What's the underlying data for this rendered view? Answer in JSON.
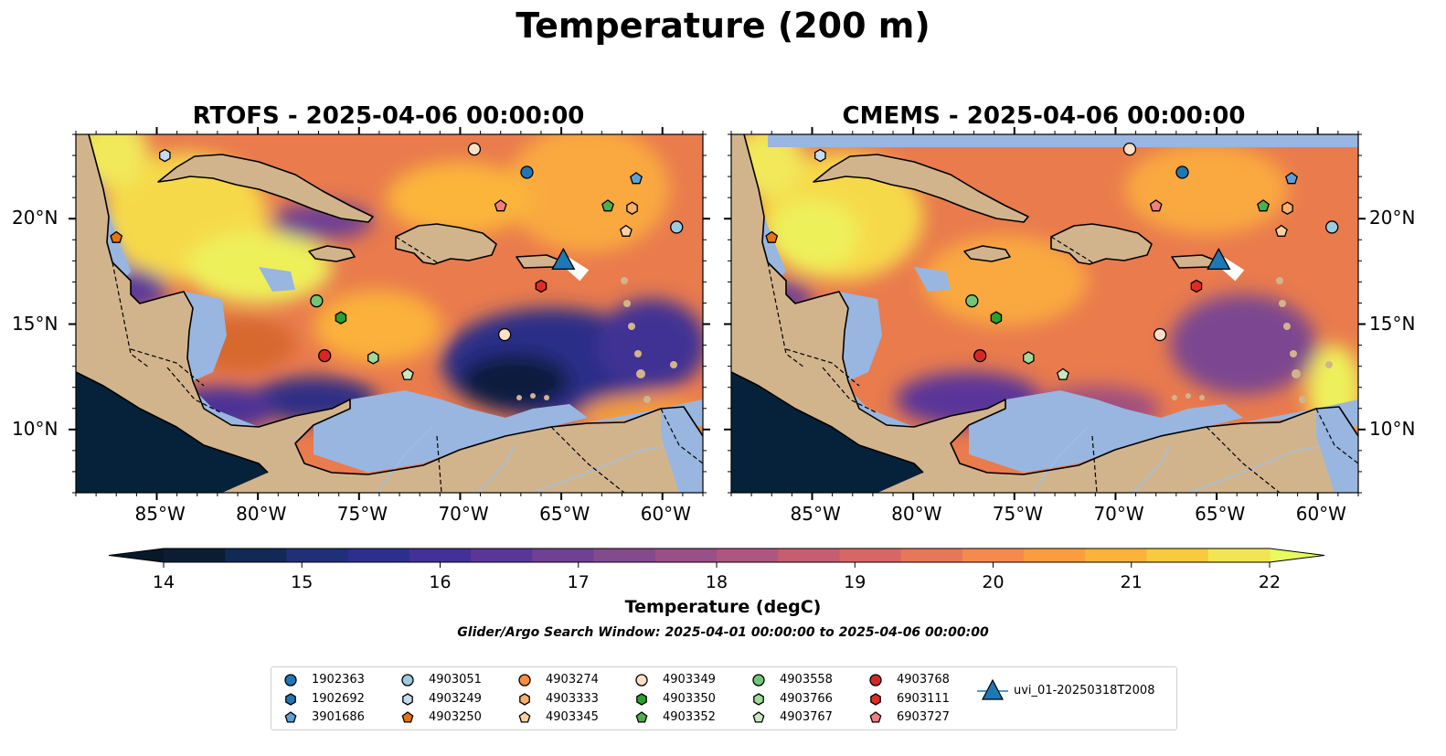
{
  "figure": {
    "suptitle": "Temperature (200 m)",
    "search_window": "Glider/Argo Search Window: 2025-04-01 00:00:00 to 2025-04-06 00:00:00"
  },
  "panels": [
    {
      "title": "RTOFS - 2025-04-06 00:00:00",
      "model": "RTOFS"
    },
    {
      "title": "CMEMS - 2025-04-06 00:00:00",
      "model": "CMEMS"
    }
  ],
  "map_extent": {
    "lon_min": -89,
    "lon_max": -58,
    "lat_min": 7,
    "lat_max": 24
  },
  "axes": {
    "lon_ticks": [
      {
        "value": -85,
        "label": "85°W"
      },
      {
        "value": -80,
        "label": "80°W"
      },
      {
        "value": -75,
        "label": "75°W"
      },
      {
        "value": -70,
        "label": "70°W"
      },
      {
        "value": -65,
        "label": "65°W"
      },
      {
        "value": -60,
        "label": "60°W"
      }
    ],
    "lat_ticks": [
      {
        "value": 20,
        "label": "20°N"
      },
      {
        "value": 15,
        "label": "15°N"
      },
      {
        "value": 10,
        "label": "10°N"
      }
    ]
  },
  "colorbar": {
    "label": "Temperature (degC)",
    "min": 14,
    "max": 22,
    "step": 0.5,
    "extend": "both",
    "ticks": [
      "14",
      "15",
      "16",
      "17",
      "18",
      "19",
      "20",
      "21",
      "22"
    ],
    "colors": [
      "#0a1d33",
      "#112a55",
      "#1f2f78",
      "#2d2f8e",
      "#433098",
      "#5a3699",
      "#6f4093",
      "#844a8e",
      "#994f87",
      "#ad5680",
      "#c45e70",
      "#d66765",
      "#e87659",
      "#f68a4c",
      "#fb9d3f",
      "#fbb33a",
      "#f8cb3f",
      "#f2e452"
    ],
    "under_color": "#07182a",
    "over_color": "#e8fa5e"
  },
  "colors": {
    "land": "#d2b48c",
    "ocean_masked": "#98b6e0",
    "deep": "#06223a"
  },
  "floats": [
    {
      "id": "1902363",
      "marker": "circle",
      "color": "#1f77b4",
      "lon": -66.7,
      "lat": 22.2
    },
    {
      "id": "1902692",
      "marker": "hexagon",
      "color": "#1f77b4",
      "lon": null,
      "lat": null
    },
    {
      "id": "3901686",
      "marker": "pentagon",
      "color": "#5ea0d6",
      "lon": -61.3,
      "lat": 21.9
    },
    {
      "id": "4903051",
      "marker": "circle",
      "color": "#9ecae1",
      "lon": -59.3,
      "lat": 19.6
    },
    {
      "id": "4903249",
      "marker": "hexagon",
      "color": "#c6dbef",
      "lon": -84.6,
      "lat": 23.0
    },
    {
      "id": "4903250",
      "marker": "pentagon",
      "color": "#e6740f",
      "lon": -87.0,
      "lat": 19.1
    },
    {
      "id": "4903274",
      "marker": "circle",
      "color": "#fd8d3c",
      "lon": null,
      "lat": null
    },
    {
      "id": "4903333",
      "marker": "hexagon",
      "color": "#fdae6b",
      "lon": -61.5,
      "lat": 20.5
    },
    {
      "id": "4903345",
      "marker": "pentagon",
      "color": "#fdd0a2",
      "lon": -61.8,
      "lat": 19.4
    },
    {
      "id": "4903349",
      "marker": "circle",
      "color": "#fde0c5",
      "lon": -69.3,
      "lat": 23.3
    },
    {
      "id": "4903350",
      "marker": "hexagon",
      "color": "#2ca02c",
      "lon": -75.9,
      "lat": 15.3
    },
    {
      "id": "4903352",
      "marker": "pentagon",
      "color": "#4daf4a",
      "lon": -62.7,
      "lat": 20.6
    },
    {
      "id": "4903558",
      "marker": "circle",
      "color": "#74c476",
      "lon": -77.1,
      "lat": 16.1
    },
    {
      "id": "4903766",
      "marker": "hexagon",
      "color": "#a1d99b",
      "lon": -74.3,
      "lat": 13.4
    },
    {
      "id": "4903767",
      "marker": "pentagon",
      "color": "#c7e9c0",
      "lon": -72.6,
      "lat": 12.6
    },
    {
      "id": "4903768",
      "marker": "circle",
      "color": "#d62728",
      "lon": -76.7,
      "lat": 13.5
    },
    {
      "id": "6903111",
      "marker": "hexagon",
      "color": "#de2d26",
      "lon": -66.0,
      "lat": 16.8
    },
    {
      "id": "6903727",
      "marker": "pentagon",
      "color": "#f08080",
      "lon": -68.0,
      "lat": 20.6
    }
  ],
  "secondary_points": [
    {
      "id": "4903349",
      "marker": "circle",
      "color": "#fde0c5",
      "lon": -67.8,
      "lat": 14.5
    }
  ],
  "glider": {
    "id": "uvi_01-20250318T2008",
    "marker": "triangle",
    "color": "#1f77b4",
    "lon": -64.9,
    "lat": 18.0
  }
}
